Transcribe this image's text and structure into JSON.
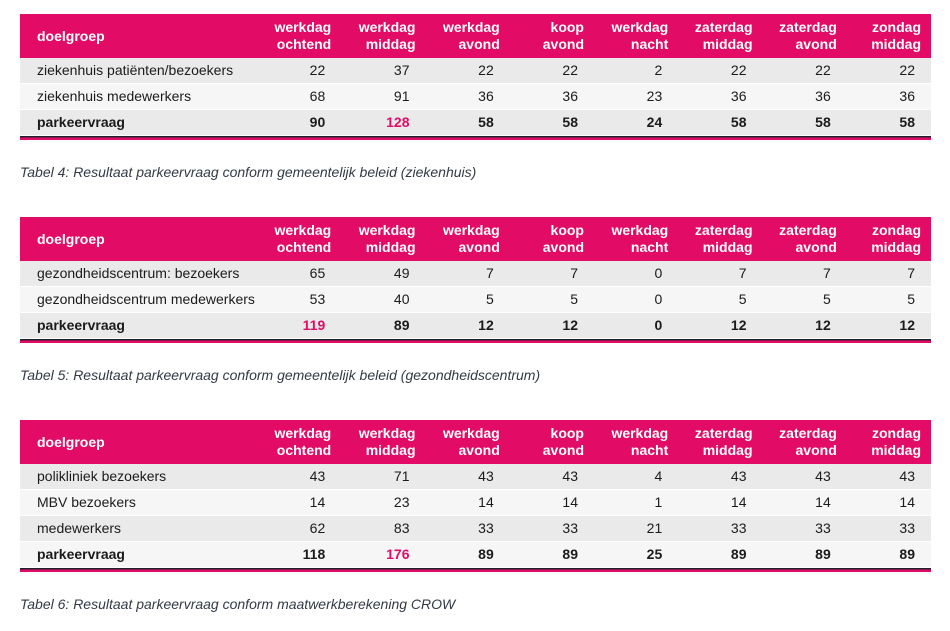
{
  "theme": {
    "header_bg": "#e20c66",
    "header_text": "#ffffff",
    "highlight_text": "#e20c66",
    "row_odd_bg": "#eaeaea",
    "row_even_bg": "#f6f6f6",
    "body_text": "#1b1b1b",
    "caption_text": "#333a45",
    "border_dark": "#20202c",
    "page_bg": "#ffffff"
  },
  "columns": {
    "label_header": "doelgroep",
    "numeric_headers": [
      [
        "werkdag",
        "ochtend"
      ],
      [
        "werkdag",
        "middag"
      ],
      [
        "werkdag",
        "avond"
      ],
      [
        "koop",
        "avond"
      ],
      [
        "werkdag",
        "nacht"
      ],
      [
        "zaterdag",
        "middag"
      ],
      [
        "zaterdag",
        "avond"
      ],
      [
        "zondag",
        "middag"
      ]
    ]
  },
  "tables": [
    {
      "id": "tabel-4",
      "caption": "Tabel 4: Resultaat parkeervraag conform gemeentelijk beleid (ziekenhuis)",
      "rows": [
        {
          "label": "ziekenhuis patiënten/bezoekers",
          "values": [
            22,
            37,
            22,
            22,
            2,
            22,
            22,
            22
          ],
          "is_total": false,
          "highlight_index": null
        },
        {
          "label": "ziekenhuis medewerkers",
          "values": [
            68,
            91,
            36,
            36,
            23,
            36,
            36,
            36
          ],
          "is_total": false,
          "highlight_index": null
        },
        {
          "label": "parkeervraag",
          "values": [
            90,
            128,
            58,
            58,
            24,
            58,
            58,
            58
          ],
          "is_total": true,
          "highlight_index": 1
        }
      ]
    },
    {
      "id": "tabel-5",
      "caption": "Tabel 5: Resultaat parkeervraag conform gemeentelijk beleid (gezondheidscentrum)",
      "rows": [
        {
          "label": "gezondheidscentrum: bezoekers",
          "values": [
            65,
            49,
            7,
            7,
            0,
            7,
            7,
            7
          ],
          "is_total": false,
          "highlight_index": null
        },
        {
          "label": "gezondheidscentrum medewerkers",
          "values": [
            53,
            40,
            5,
            5,
            0,
            5,
            5,
            5
          ],
          "is_total": false,
          "highlight_index": null
        },
        {
          "label": "parkeervraag",
          "values": [
            119,
            89,
            12,
            12,
            0,
            12,
            12,
            12
          ],
          "is_total": true,
          "highlight_index": 0
        }
      ]
    },
    {
      "id": "tabel-6",
      "caption": "Tabel 6: Resultaat parkeervraag conform maatwerkberekening CROW",
      "rows": [
        {
          "label": "polikliniek bezoekers",
          "values": [
            43,
            71,
            43,
            43,
            4,
            43,
            43,
            43
          ],
          "is_total": false,
          "highlight_index": null
        },
        {
          "label": "MBV bezoekers",
          "values": [
            14,
            23,
            14,
            14,
            1,
            14,
            14,
            14
          ],
          "is_total": false,
          "highlight_index": null
        },
        {
          "label": "medewerkers",
          "values": [
            62,
            83,
            33,
            33,
            21,
            33,
            33,
            33
          ],
          "is_total": false,
          "highlight_index": null
        },
        {
          "label": "parkeervraag",
          "values": [
            118,
            176,
            89,
            89,
            25,
            89,
            89,
            89
          ],
          "is_total": true,
          "highlight_index": 1
        }
      ]
    }
  ]
}
